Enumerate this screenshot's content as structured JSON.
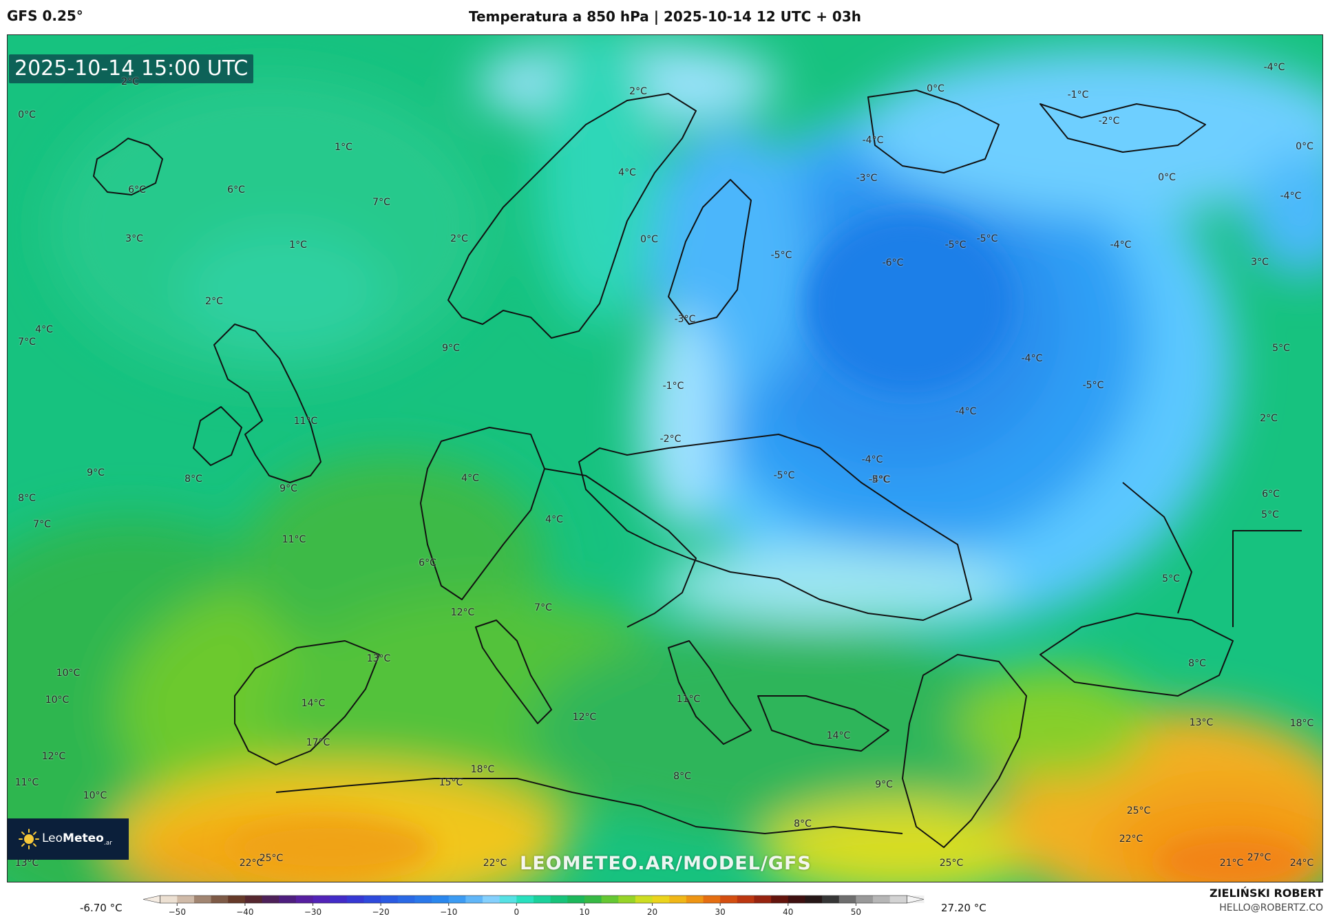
{
  "header": {
    "model": "GFS 0.25°",
    "title": "Temperatura a 850 hPa | 2025-10-14 12 UTC + 03h"
  },
  "map": {
    "timestamp": "2025-10-14 15:00 UTC",
    "watermark": "LEOMETEO.AR/MODEL/GFS",
    "logo": {
      "brand_plain": "Leo",
      "brand_bold": "Meteo",
      "brand_suffix": ".ar",
      "icon": "sun-icon"
    },
    "region": "Europe",
    "labels": [
      "2°C",
      "0°C",
      "1°C",
      "6°C",
      "6°C",
      "7°C",
      "3°C",
      "1°C",
      "2°C",
      "4°C",
      "7°C",
      "2°C",
      "2°C",
      "4°C",
      "0°C",
      "9°C",
      "11°C",
      "9°C",
      "8°C",
      "8°C",
      "9°C",
      "7°C",
      "11°C",
      "6°C",
      "4°C",
      "4°C",
      "12°C",
      "7°C",
      "13°C",
      "10°C",
      "10°C",
      "14°C",
      "17°C",
      "12°C",
      "11°C",
      "10°C",
      "13°C",
      "22°C",
      "25°C",
      "15°C",
      "18°C",
      "22°C",
      "12°C",
      "11°C",
      "8°C",
      "8°C",
      "14°C",
      "9°C",
      "25°C",
      "-3°C",
      "-1°C",
      "-2°C",
      "-5°C",
      "0°C",
      "-4°C",
      "-3°C",
      "-6°C",
      "-5°C",
      "-5°C",
      "-4°C",
      "-1°C",
      "-2°C",
      "-4°C",
      "0°C",
      "-4°C",
      "0°C",
      "-4°C",
      "-4°C",
      "-5°C",
      "-5°C",
      "-4°C",
      "-4°C",
      "-5°C",
      "3°C",
      "5°C",
      "2°C",
      "6°C",
      "5°C",
      "5°C",
      "8°C",
      "13°C",
      "18°C",
      "25°C",
      "22°C",
      "21°C",
      "27°C",
      "24°C"
    ]
  },
  "colorbar": {
    "min_label": "-6.70 °C",
    "max_label": "27.20 °C",
    "range": [
      -55,
      60
    ],
    "tick_values": [
      -50,
      -40,
      -30,
      -20,
      -10,
      0,
      10,
      20,
      30,
      40,
      50
    ],
    "tick_labels": [
      "−50",
      "−40",
      "−30",
      "−20",
      "−10",
      "0",
      "10",
      "20",
      "30",
      "40",
      "50"
    ],
    "stops": [
      {
        "v": -55,
        "c": "#ffffff"
      },
      {
        "v": -50,
        "c": "#e6d5c3"
      },
      {
        "v": -45,
        "c": "#8a6a55"
      },
      {
        "v": -40,
        "c": "#5a2a1a"
      },
      {
        "v": -35,
        "c": "#4a1e6e"
      },
      {
        "v": -30,
        "c": "#5a1fb0"
      },
      {
        "v": -25,
        "c": "#3a2fd0"
      },
      {
        "v": -20,
        "c": "#2a52e0"
      },
      {
        "v": -10,
        "c": "#2a8ef0"
      },
      {
        "v": -3,
        "c": "#8fd8ff"
      },
      {
        "v": 0,
        "c": "#2ee8d0"
      },
      {
        "v": 5,
        "c": "#14c989"
      },
      {
        "v": 10,
        "c": "#1fb24c"
      },
      {
        "v": 15,
        "c": "#7ccf2a"
      },
      {
        "v": 20,
        "c": "#e8e21e"
      },
      {
        "v": 25,
        "c": "#f2a814"
      },
      {
        "v": 30,
        "c": "#e05a10"
      },
      {
        "v": 35,
        "c": "#b02a10"
      },
      {
        "v": 40,
        "c": "#4a0c0c"
      },
      {
        "v": 45,
        "c": "#1a1a1a"
      },
      {
        "v": 50,
        "c": "#8a8a8a"
      },
      {
        "v": 60,
        "c": "#ffffff"
      }
    ]
  },
  "credit": {
    "name": "ZIELIŃSKI ROBERT",
    "email": "HELLO@ROBERTZ.CO"
  }
}
